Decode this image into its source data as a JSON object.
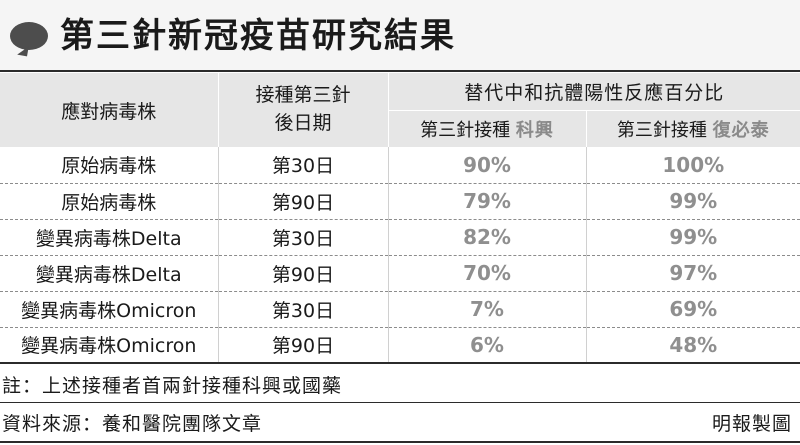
{
  "title": "第三針新冠疫苗研究結果",
  "table": {
    "headers": {
      "variant": "應對病毒株",
      "days": "接種第三針後日期",
      "percent_group": "替代中和抗體陽性反應百分比",
      "vaccine_prefix": "第三針接種",
      "vaccine_1": "科興",
      "vaccine_2": "復必泰"
    },
    "rows": [
      {
        "variant": "原始病毒株",
        "days": "第30日",
        "sinovac": "90%",
        "biontech": "100%"
      },
      {
        "variant": "原始病毒株",
        "days": "第90日",
        "sinovac": "79%",
        "biontech": "99%"
      },
      {
        "variant": "變異病毒株Delta",
        "days": "第30日",
        "sinovac": "82%",
        "biontech": "99%"
      },
      {
        "variant": "變異病毒株Delta",
        "days": "第90日",
        "sinovac": "70%",
        "biontech": "97%"
      },
      {
        "variant": "變異病毒株Omicron",
        "days": "第30日",
        "sinovac": "7%",
        "biontech": "69%"
      },
      {
        "variant": "變異病毒株Omicron",
        "days": "第90日",
        "sinovac": "6%",
        "biontech": "48%"
      }
    ]
  },
  "note": "註：上述接種者首兩針接種科興或國藥",
  "source": "資料來源：養和醫院團隊文章",
  "credit": "明報製圖",
  "colors": {
    "header_bg": "#e6e6e6",
    "percent_text": "#8f8f8f",
    "rule": "#2b2b2b"
  }
}
